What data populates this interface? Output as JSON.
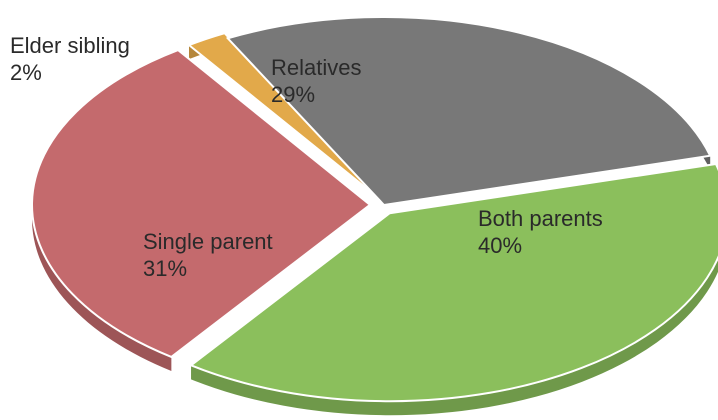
{
  "chart_data": {
    "type": "pie",
    "title": "",
    "legend": "none",
    "slices": [
      {
        "label": "Both parents",
        "value": 40,
        "value_label": "40%",
        "color": "#8bbf5c"
      },
      {
        "label": "Single parent",
        "value": 31,
        "value_label": "31%",
        "color": "#c46a6d"
      },
      {
        "label": "Elder sibling",
        "value": 2,
        "value_label": "2%",
        "color": "#e2a94a"
      },
      {
        "label": "Relatives",
        "value": 29,
        "value_label": "29%",
        "color": "#787878"
      }
    ]
  }
}
